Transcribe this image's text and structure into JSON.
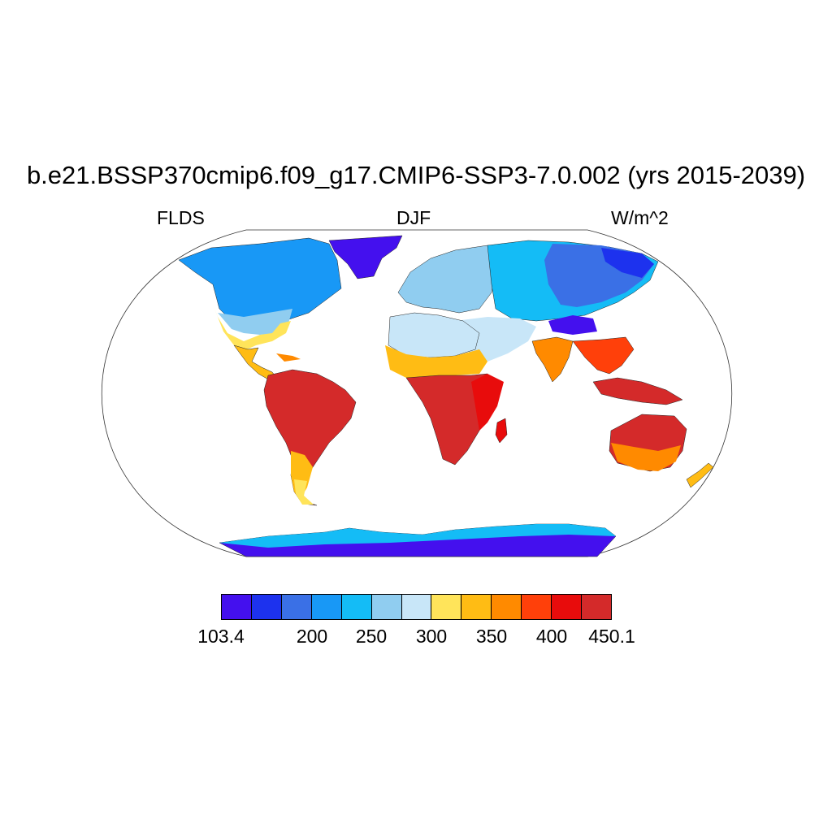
{
  "title": "b.e21.BSSP370cmip6.f09_g17.CMIP6-SSP3-7.0.002 (yrs 2015-2039)",
  "left_label": "FLDS",
  "center_label": "DJF",
  "right_label": "W/m^2",
  "map_data": {
    "variable": "FLDS",
    "season": "DJF",
    "units": "W/m^2",
    "projection": "Robinson",
    "value_range": [
      103.4,
      450.1
    ]
  },
  "colorbar": {
    "colors": [
      "#4410ee",
      "#1d32ee",
      "#3a70e6",
      "#1898f6",
      "#14bcf6",
      "#90cdf0",
      "#c8e6f8",
      "#ffe45a",
      "#ffbc14",
      "#ff8a00",
      "#ff400a",
      "#e80c0c",
      "#d42a2a"
    ],
    "labels": [
      "103.4",
      "200",
      "250",
      "300",
      "350",
      "400",
      "450.1"
    ]
  }
}
